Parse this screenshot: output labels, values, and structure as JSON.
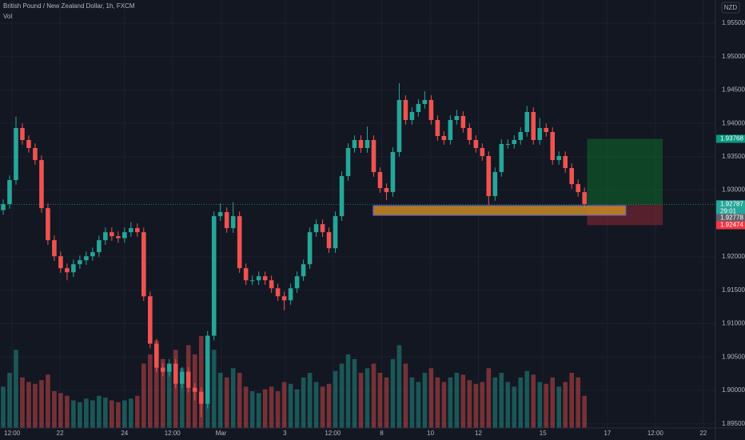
{
  "chart_data": {
    "type": "candlestick",
    "title": "British Pound / New Zealand Dollar, 1h, FXCM",
    "indicator": "Vol",
    "currency": "NZD",
    "up_color": "#26a69a",
    "down_color": "#ef5350",
    "open": [
      1.927,
      1.9279,
      1.9315,
      1.9393,
      1.9375,
      1.9363,
      1.9345,
      1.9273,
      1.9225,
      1.9201,
      1.9183,
      1.9177,
      1.9189,
      1.9195,
      1.9201,
      1.9207,
      1.9225,
      1.9237,
      1.9231,
      1.9228,
      1.9237,
      1.9243,
      1.9237,
      1.9141,
      1.907,
      1.9034,
      1.9028,
      1.904,
      1.901,
      1.9028,
      1.9004,
      1.8998,
      1.898,
      1.9082,
      1.9261,
      1.9267,
      1.9243,
      1.9261,
      1.9183,
      1.9165,
      1.9165,
      1.9171,
      1.9165,
      1.9153,
      1.9141,
      1.9135,
      1.9153,
      1.9171,
      1.9189,
      1.9237,
      1.9249,
      1.9237,
      1.9213,
      1.9261,
      1.9321,
      1.9363,
      1.9375,
      1.9363,
      1.9375,
      1.9327,
      1.9303,
      1.9297,
      1.9357,
      1.9435,
      1.9405,
      1.9417,
      1.9429,
      1.9435,
      1.9405,
      1.9381,
      1.9375,
      1.9405,
      1.9411,
      1.9393,
      1.9375,
      1.9363,
      1.9351,
      1.9291,
      1.9327,
      1.9369,
      1.9369,
      1.9375,
      1.9387,
      1.9417,
      1.9375,
      1.9393,
      1.9387,
      1.9345,
      1.9351,
      1.9333,
      1.9309,
      1.9297
    ],
    "high": [
      1.9286,
      1.9322,
      1.941,
      1.94,
      1.9382,
      1.937,
      1.9352,
      1.928,
      1.9232,
      1.9208,
      1.919,
      1.9196,
      1.9202,
      1.9208,
      1.9214,
      1.9232,
      1.9244,
      1.9244,
      1.9238,
      1.9244,
      1.9252,
      1.925,
      1.9244,
      1.9148,
      1.9077,
      1.9041,
      1.9047,
      1.9047,
      1.9035,
      1.9035,
      1.9011,
      1.9005,
      1.9089,
      1.9268,
      1.928,
      1.9274,
      1.9282,
      1.9268,
      1.919,
      1.9172,
      1.9178,
      1.9178,
      1.9172,
      1.916,
      1.9148,
      1.916,
      1.9178,
      1.9196,
      1.9244,
      1.9256,
      1.9256,
      1.9244,
      1.9268,
      1.9328,
      1.937,
      1.9382,
      1.9382,
      1.9395,
      1.9382,
      1.9334,
      1.931,
      1.9364,
      1.946,
      1.9442,
      1.9424,
      1.9436,
      1.9448,
      1.9442,
      1.9412,
      1.9388,
      1.9412,
      1.942,
      1.9418,
      1.94,
      1.9382,
      1.937,
      1.9358,
      1.9334,
      1.9376,
      1.9376,
      1.9382,
      1.9394,
      1.9426,
      1.9424,
      1.9408,
      1.94,
      1.9394,
      1.9358,
      1.9358,
      1.934,
      1.9316,
      1.9304
    ],
    "low": [
      1.9263,
      1.9272,
      1.9308,
      1.9368,
      1.9356,
      1.9338,
      1.9266,
      1.9218,
      1.9194,
      1.9176,
      1.9165,
      1.917,
      1.9182,
      1.9188,
      1.9194,
      1.92,
      1.9218,
      1.9224,
      1.9221,
      1.9221,
      1.923,
      1.923,
      1.9134,
      1.9063,
      1.9027,
      1.9021,
      1.9021,
      1.9003,
      1.9003,
      1.8997,
      1.8985,
      1.896,
      1.8973,
      1.9075,
      1.9254,
      1.9236,
      1.9236,
      1.9176,
      1.9158,
      1.9158,
      1.9158,
      1.9158,
      1.9146,
      1.9134,
      1.912,
      1.9128,
      1.9146,
      1.9164,
      1.9182,
      1.923,
      1.923,
      1.9206,
      1.9206,
      1.9254,
      1.9314,
      1.9356,
      1.9356,
      1.9356,
      1.932,
      1.9296,
      1.9285,
      1.929,
      1.935,
      1.9398,
      1.9398,
      1.941,
      1.9422,
      1.9398,
      1.9374,
      1.9368,
      1.9368,
      1.9398,
      1.9386,
      1.9368,
      1.9356,
      1.9344,
      1.9278,
      1.9284,
      1.932,
      1.9362,
      1.9362,
      1.9368,
      1.938,
      1.9368,
      1.9368,
      1.938,
      1.9338,
      1.9338,
      1.9326,
      1.9302,
      1.929,
      1.9272
    ],
    "close": [
      1.9279,
      1.9315,
      1.9393,
      1.9375,
      1.9363,
      1.9345,
      1.9273,
      1.9225,
      1.9201,
      1.9183,
      1.9177,
      1.9189,
      1.9195,
      1.9201,
      1.9207,
      1.9225,
      1.9237,
      1.9231,
      1.9228,
      1.9237,
      1.9243,
      1.9237,
      1.9141,
      1.907,
      1.9034,
      1.9028,
      1.904,
      1.901,
      1.9028,
      1.9004,
      1.8998,
      1.898,
      1.9082,
      1.9261,
      1.9267,
      1.9243,
      1.9261,
      1.9183,
      1.9165,
      1.9165,
      1.9171,
      1.9165,
      1.9153,
      1.9141,
      1.9135,
      1.9153,
      1.9171,
      1.9189,
      1.9237,
      1.9249,
      1.9237,
      1.9213,
      1.9261,
      1.9321,
      1.9363,
      1.9375,
      1.9363,
      1.9375,
      1.9327,
      1.9303,
      1.9297,
      1.9357,
      1.9435,
      1.9405,
      1.9417,
      1.9429,
      1.9435,
      1.9405,
      1.9381,
      1.9375,
      1.9405,
      1.9411,
      1.9393,
      1.9375,
      1.9363,
      1.9351,
      1.9291,
      1.9327,
      1.9369,
      1.9369,
      1.9375,
      1.9387,
      1.9417,
      1.9375,
      1.9393,
      1.9387,
      1.9345,
      1.9351,
      1.9333,
      1.9309,
      1.9297,
      1.9279
    ],
    "volume": [
      45,
      60,
      85,
      55,
      50,
      48,
      52,
      58,
      40,
      38,
      35,
      30,
      28,
      32,
      30,
      35,
      33,
      30,
      28,
      30,
      32,
      35,
      70,
      80,
      95,
      75,
      70,
      85,
      65,
      90,
      80,
      100,
      95,
      85,
      60,
      55,
      65,
      60,
      45,
      40,
      38,
      42,
      45,
      40,
      50,
      48,
      42,
      55,
      60,
      50,
      45,
      48,
      62,
      70,
      80,
      75,
      60,
      65,
      70,
      60,
      55,
      75,
      90,
      70,
      55,
      50,
      60,
      65,
      55,
      50,
      55,
      60,
      58,
      52,
      48,
      50,
      65,
      55,
      60,
      50,
      45,
      55,
      62,
      58,
      50,
      48,
      55,
      45,
      50,
      60,
      55,
      35
    ],
    "ylim": [
      1.89437,
      1.95847
    ],
    "yticks": [
      {
        "value": 1.955,
        "label": "1.95500"
      },
      {
        "value": 1.95,
        "label": "1.95000"
      },
      {
        "value": 1.945,
        "label": "1.94500"
      },
      {
        "value": 1.94,
        "label": "1.94000"
      },
      {
        "value": 1.935,
        "label": "1.93500"
      },
      {
        "value": 1.93,
        "label": "1.93000"
      },
      {
        "value": 1.92,
        "label": "1.92000"
      },
      {
        "value": 1.915,
        "label": "1.91500"
      },
      {
        "value": 1.91,
        "label": "1.91000"
      },
      {
        "value": 1.905,
        "label": "1.90500"
      },
      {
        "value": 1.9,
        "label": "1.90000"
      },
      {
        "value": 1.895,
        "label": "1.89500"
      }
    ],
    "xlim": [
      0,
      112
    ],
    "xticks": [
      {
        "value": 1.9,
        "label": "12:00"
      },
      {
        "value": 9.4,
        "label": "22"
      },
      {
        "value": 19.5,
        "label": "24"
      },
      {
        "value": 27,
        "label": "12:00"
      },
      {
        "value": 34.6,
        "label": "Mar"
      },
      {
        "value": 44.6,
        "label": "3"
      },
      {
        "value": 52.1,
        "label": "12:00"
      },
      {
        "value": 59.75,
        "label": "8"
      },
      {
        "value": 67.4,
        "label": "10"
      },
      {
        "value": 74.9,
        "label": "12"
      },
      {
        "value": 85,
        "label": "15"
      },
      {
        "value": 95.1,
        "label": "17"
      },
      {
        "value": 102.6,
        "label": "12:00"
      },
      {
        "value": 110.1,
        "label": "22"
      }
    ],
    "grid": true,
    "current_price": 1.92787,
    "countdown": "29:01",
    "zone": {
      "top": 1.9277,
      "bottom": 1.9262,
      "x": [
        58.4,
        98
      ],
      "color": "#c98a25"
    },
    "position": {
      "entry": 1.92778,
      "target": 1.93768,
      "stop": 1.92474,
      "x": [
        91.9,
        103.75
      ]
    },
    "price_tags": [
      {
        "value": 1.93768,
        "color": "#089981"
      },
      {
        "value": 1.92787,
        "color": "#26a69a"
      },
      {
        "value": 1.92778,
        "color": "#5d606b"
      },
      {
        "value": 1.92474,
        "color": "#f23645"
      }
    ]
  }
}
